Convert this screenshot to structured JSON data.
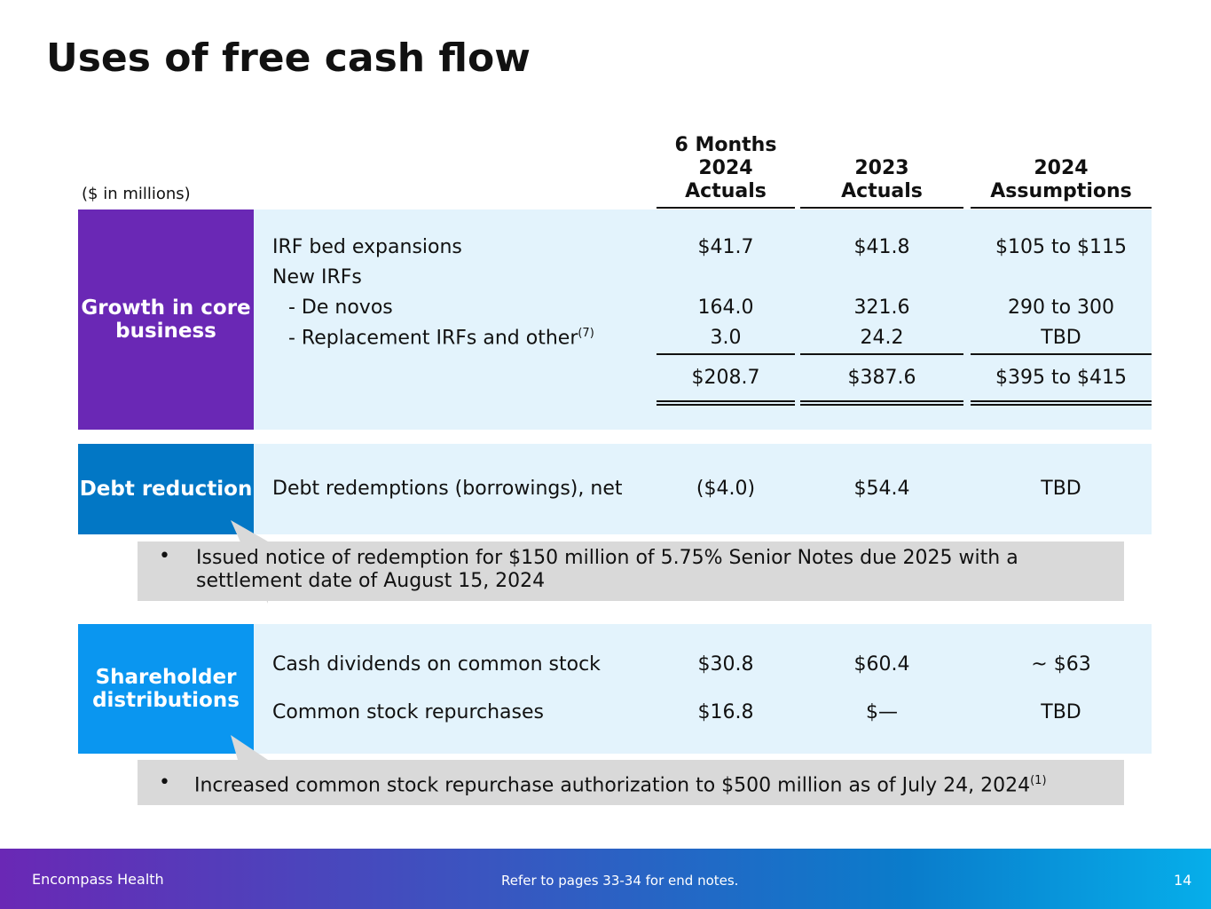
{
  "title": "Uses of free cash flow",
  "units": "($ in millions)",
  "columns": [
    {
      "line1": "6 Months",
      "line2": "2024",
      "line3": "Actuals"
    },
    {
      "line2": "2023",
      "line3": "Actuals"
    },
    {
      "line2": "2024",
      "line3": "Assumptions"
    }
  ],
  "growth": {
    "label": "Growth in core business",
    "rows": [
      {
        "label": "IRF bed expansions",
        "v": [
          "$41.7",
          "$41.8",
          "$105 to $115"
        ]
      },
      {
        "label": "New IRFs"
      },
      {
        "label": "- De novos",
        "v": [
          "164.0",
          "321.6",
          "290 to 300"
        ]
      },
      {
        "label": "- Replacement IRFs and other",
        "sup": "(7)",
        "v": [
          "3.0",
          "24.2",
          "TBD"
        ]
      }
    ],
    "total": [
      "$208.7",
      "$387.6",
      "$395 to $415"
    ]
  },
  "debt": {
    "label": "Debt reduction",
    "row": {
      "label": "Debt redemptions (borrowings), net",
      "v": [
        "($4.0)",
        "$54.4",
        "TBD"
      ]
    },
    "note": "Issued notice of redemption for $150 million of 5.75% Senior Notes due 2025 with a settlement date of August 15, 2024"
  },
  "shareholder": {
    "label": "Shareholder distributions",
    "rows": [
      {
        "label": "Cash dividends on common stock",
        "v": [
          "$30.8",
          "$60.4",
          "~ $63"
        ]
      },
      {
        "label": "Common stock repurchases",
        "v": [
          "$16.8",
          "$—",
          "TBD"
        ]
      }
    ],
    "note": "Increased common stock repurchase authorization to $500 million as of July 24, 2024",
    "note_sup": "(1)"
  },
  "footer": {
    "company": "Encompass Health",
    "note": "Refer to pages 33-34 for end notes.",
    "page": "14"
  },
  "colors": {
    "growth": "#6a28b5",
    "debt": "#0277c5",
    "shareholder": "#0a96f0",
    "panel": "#e3f3fc",
    "callout": "#d9d9d9"
  }
}
